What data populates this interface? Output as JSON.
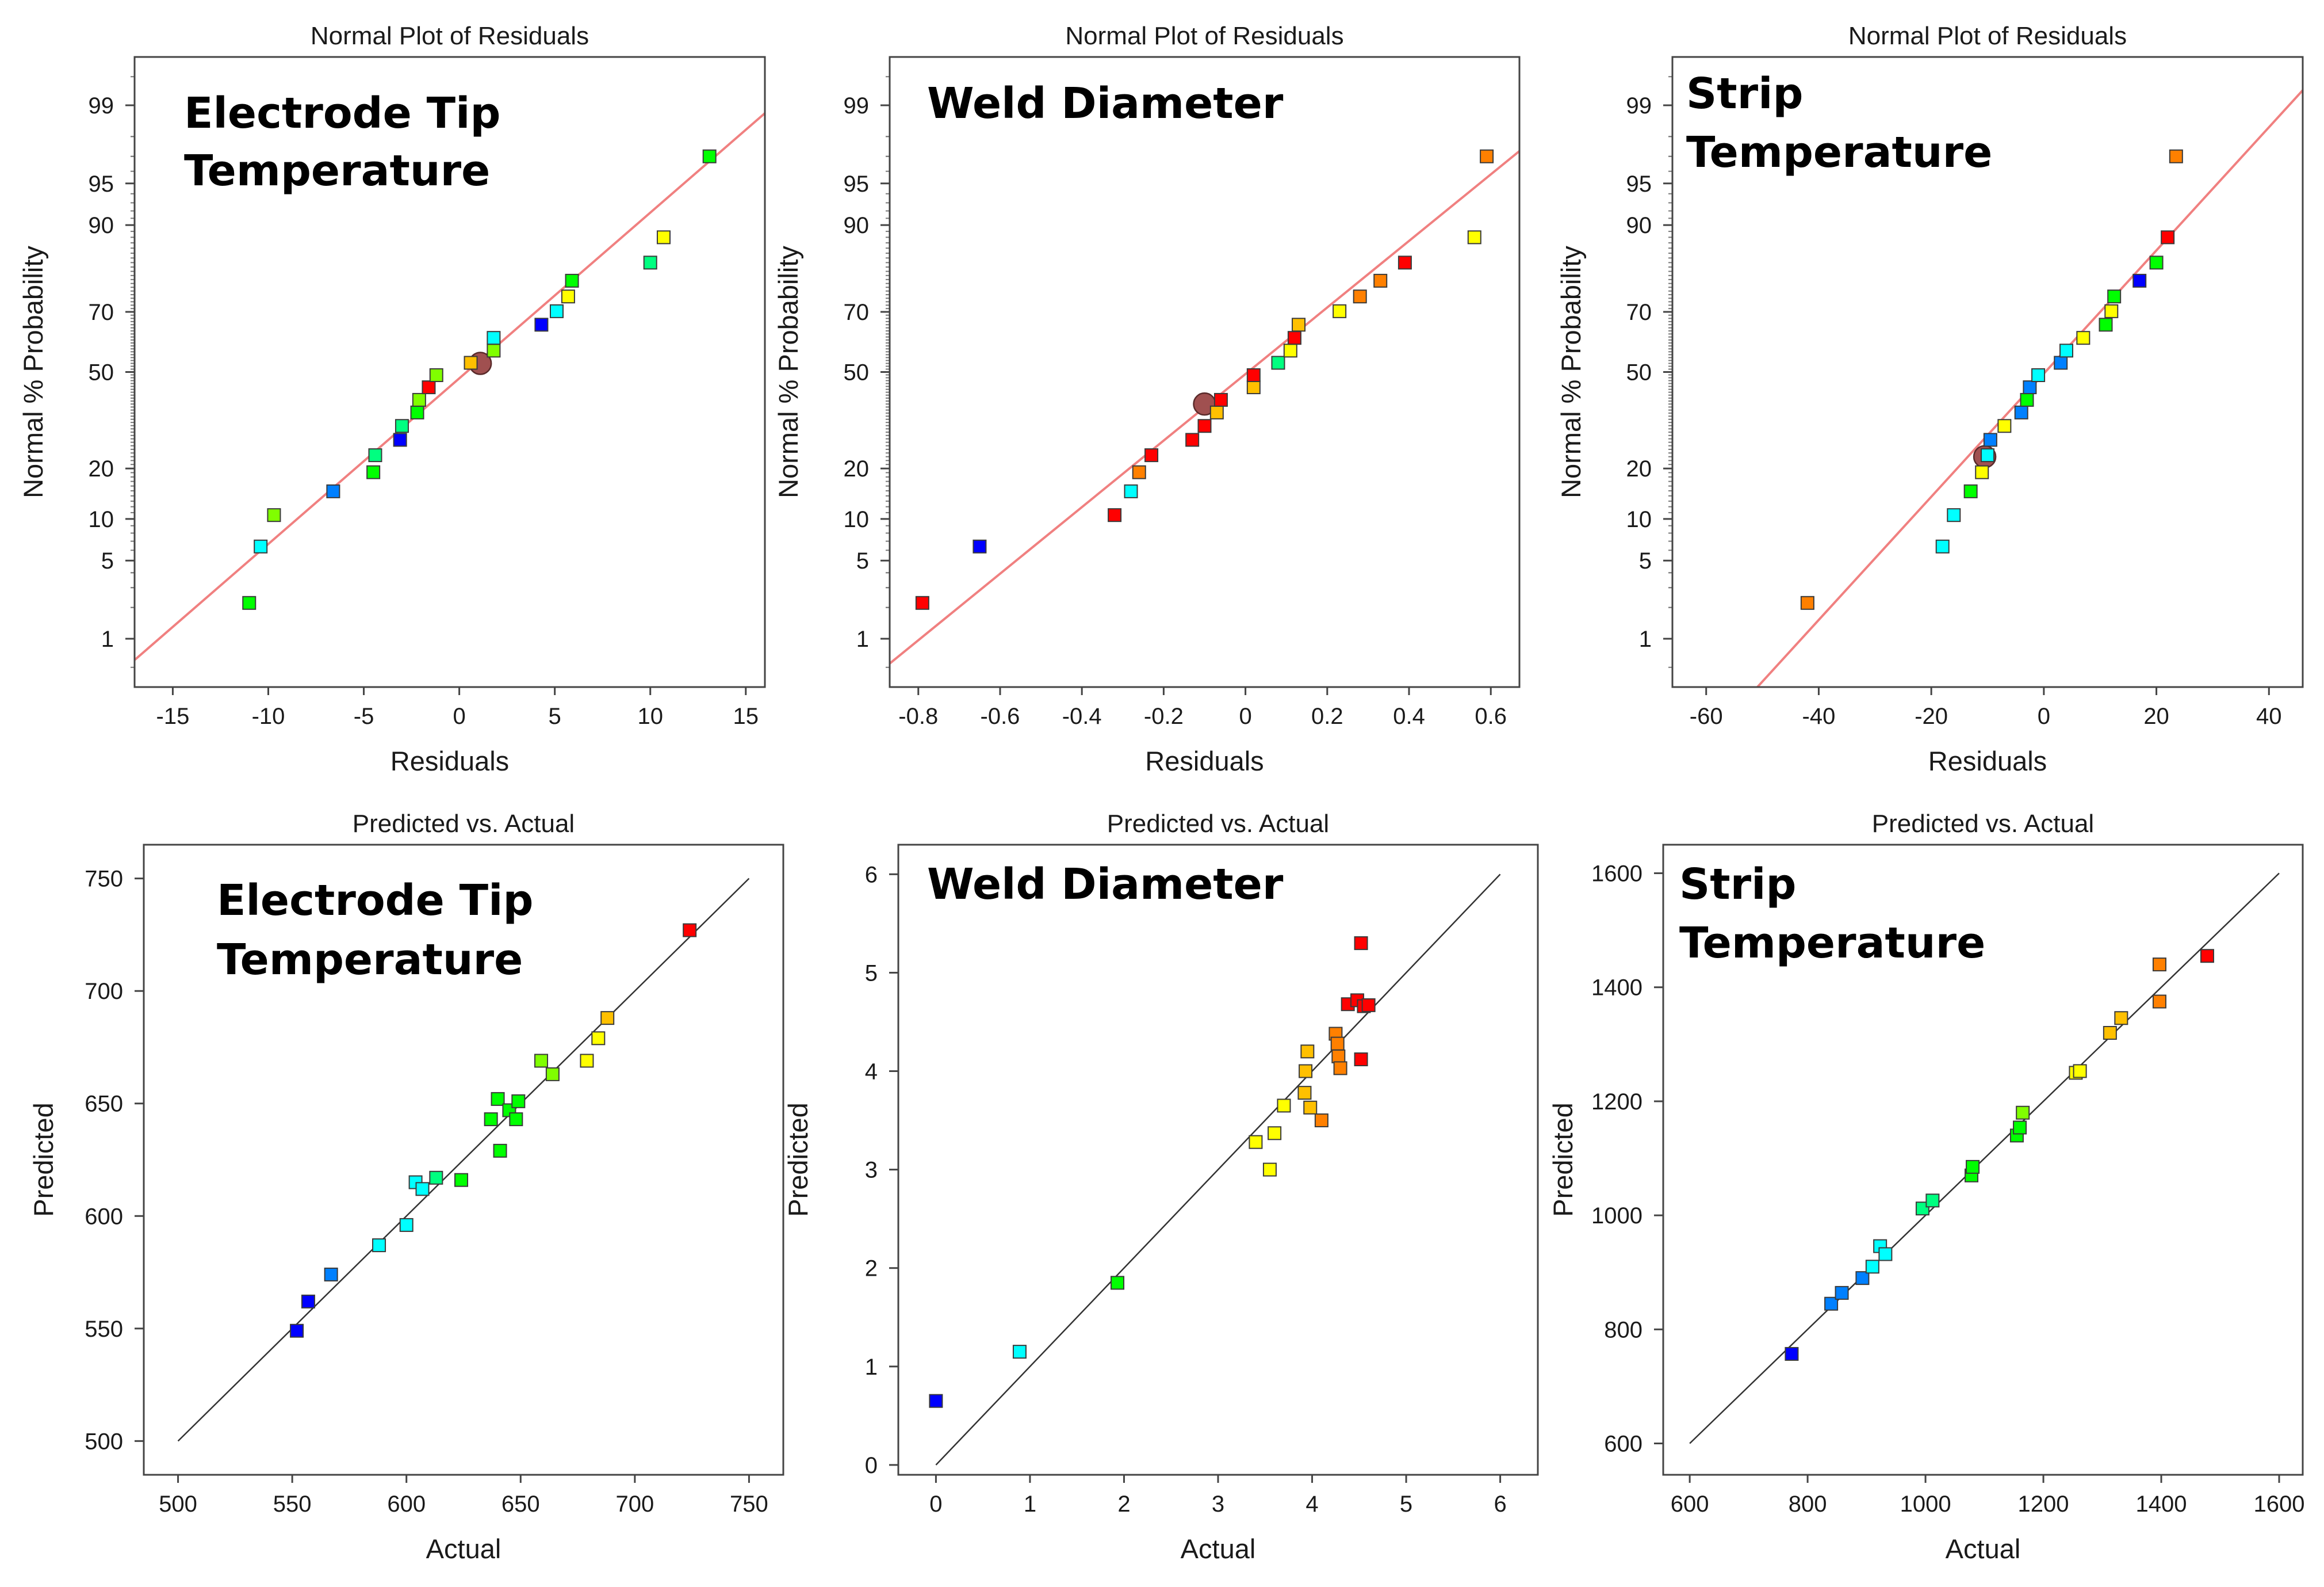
{
  "colors": {
    "fit_line_residuals": "#f08080",
    "diagonal_line": "#333333",
    "palette": [
      "#0000ff",
      "#0080ff",
      "#00ffff",
      "#00ff80",
      "#00ff00",
      "#80ff00",
      "#ffff00",
      "#ffc000",
      "#ff8000",
      "#ff0000"
    ],
    "highlight_circle": "#a05050"
  },
  "chart_data": [
    {
      "type": "scatter",
      "title": "Normal Plot of Residuals",
      "annotation": [
        "Electrode Tip",
        "Temperature"
      ],
      "xlabel": "Residuals",
      "ylabel": "Normal % Probability",
      "xlim": [
        -17,
        16
      ],
      "xticks": [
        -15,
        -10,
        -5,
        0,
        5,
        10,
        15
      ],
      "yscale": "normal-probability",
      "ylim": [
        0.3,
        99.7
      ],
      "yticks": [
        1,
        5,
        10,
        20,
        50,
        70,
        90,
        95,
        99
      ],
      "fit_line": {
        "x": [
          -17,
          16
        ],
        "y": [
          0.6,
          98.8
        ]
      },
      "highlight": {
        "x": 1.1,
        "y": 53
      },
      "points": [
        {
          "x": -11.0,
          "y": 2.2,
          "c": 4
        },
        {
          "x": -10.4,
          "y": 6.4,
          "c": 2
        },
        {
          "x": -9.7,
          "y": 10.6,
          "c": 5
        },
        {
          "x": -6.6,
          "y": 14.9,
          "c": 1
        },
        {
          "x": -4.5,
          "y": 19.1,
          "c": 4
        },
        {
          "x": -4.4,
          "y": 23.4,
          "c": 3
        },
        {
          "x": -3.1,
          "y": 27.7,
          "c": 0
        },
        {
          "x": -3.0,
          "y": 31.9,
          "c": 3
        },
        {
          "x": -2.2,
          "y": 36.2,
          "c": 4
        },
        {
          "x": -2.1,
          "y": 40.4,
          "c": 5
        },
        {
          "x": -1.6,
          "y": 44.7,
          "c": 9
        },
        {
          "x": -1.2,
          "y": 48.9,
          "c": 5
        },
        {
          "x": 0.6,
          "y": 53.2,
          "c": 7
        },
        {
          "x": 1.8,
          "y": 57.4,
          "c": 5
        },
        {
          "x": 1.8,
          "y": 61.7,
          "c": 2
        },
        {
          "x": 4.3,
          "y": 66.0,
          "c": 0
        },
        {
          "x": 5.1,
          "y": 70.2,
          "c": 2
        },
        {
          "x": 5.7,
          "y": 74.5,
          "c": 6
        },
        {
          "x": 5.9,
          "y": 78.7,
          "c": 4
        },
        {
          "x": 10.0,
          "y": 83.0,
          "c": 3
        },
        {
          "x": 10.7,
          "y": 88.0,
          "c": 6
        },
        {
          "x": 13.1,
          "y": 97.0,
          "c": 4
        }
      ]
    },
    {
      "type": "scatter",
      "title": "Normal Plot of Residuals",
      "annotation": [
        "Weld Diameter"
      ],
      "xlabel": "Residuals",
      "ylabel": "Normal % Probability",
      "xlim": [
        -0.87,
        0.67
      ],
      "xticks": [
        -0.8,
        -0.6,
        -0.4,
        -0.2,
        0,
        0.2,
        0.4,
        0.6
      ],
      "yscale": "normal-probability",
      "ylim": [
        0.3,
        99.7
      ],
      "yticks": [
        1,
        5,
        10,
        20,
        50,
        70,
        90,
        95,
        99
      ],
      "fit_line": {
        "x": [
          -0.87,
          0.67
        ],
        "y": [
          0.55,
          97.3
        ]
      },
      "highlight": {
        "x": -0.1,
        "y": 39
      },
      "points": [
        {
          "x": -0.79,
          "y": 2.2,
          "c": 9
        },
        {
          "x": -0.65,
          "y": 6.4,
          "c": 0
        },
        {
          "x": -0.32,
          "y": 10.6,
          "c": 9
        },
        {
          "x": -0.28,
          "y": 14.9,
          "c": 2
        },
        {
          "x": -0.26,
          "y": 19.1,
          "c": 8
        },
        {
          "x": -0.23,
          "y": 23.4,
          "c": 9
        },
        {
          "x": -0.13,
          "y": 27.7,
          "c": 9
        },
        {
          "x": -0.1,
          "y": 31.9,
          "c": 9
        },
        {
          "x": -0.07,
          "y": 36.2,
          "c": 7
        },
        {
          "x": -0.06,
          "y": 40.4,
          "c": 9
        },
        {
          "x": 0.02,
          "y": 44.7,
          "c": 7
        },
        {
          "x": 0.02,
          "y": 48.9,
          "c": 9
        },
        {
          "x": 0.08,
          "y": 53.2,
          "c": 3
        },
        {
          "x": 0.11,
          "y": 57.4,
          "c": 6
        },
        {
          "x": 0.12,
          "y": 61.7,
          "c": 9
        },
        {
          "x": 0.13,
          "y": 66.0,
          "c": 7
        },
        {
          "x": 0.23,
          "y": 70.2,
          "c": 6
        },
        {
          "x": 0.28,
          "y": 74.5,
          "c": 8
        },
        {
          "x": 0.33,
          "y": 78.7,
          "c": 8
        },
        {
          "x": 0.39,
          "y": 83.0,
          "c": 9
        },
        {
          "x": 0.56,
          "y": 88.0,
          "c": 6
        },
        {
          "x": 0.59,
          "y": 97.0,
          "c": 8
        }
      ]
    },
    {
      "type": "scatter",
      "title": "Normal Plot of Residuals",
      "annotation": [
        "Strip",
        "Temperature"
      ],
      "xlabel": "Residuals",
      "ylabel": "Normal % Probability",
      "xlim": [
        -66,
        46
      ],
      "xticks": [
        -60,
        -40,
        -20,
        0,
        20,
        40
      ],
      "yscale": "normal-probability",
      "ylim": [
        0.3,
        99.7
      ],
      "yticks": [
        1,
        5,
        10,
        20,
        50,
        70,
        90,
        95,
        99
      ],
      "fit_line": {
        "x": [
          -52,
          46
        ],
        "y": [
          0.25,
          99.3
        ]
      },
      "highlight": {
        "x": -10.5,
        "y": 23
      },
      "points": [
        {
          "x": -42.0,
          "y": 2.2,
          "c": 8
        },
        {
          "x": -18.0,
          "y": 6.4,
          "c": 2
        },
        {
          "x": -16.0,
          "y": 10.6,
          "c": 2
        },
        {
          "x": -13.0,
          "y": 14.9,
          "c": 4
        },
        {
          "x": -11.0,
          "y": 19.1,
          "c": 6
        },
        {
          "x": -10.0,
          "y": 23.4,
          "c": 2
        },
        {
          "x": -9.5,
          "y": 27.7,
          "c": 1
        },
        {
          "x": -7.0,
          "y": 31.9,
          "c": 6
        },
        {
          "x": -4.0,
          "y": 36.2,
          "c": 1
        },
        {
          "x": -3.0,
          "y": 40.4,
          "c": 4
        },
        {
          "x": -2.5,
          "y": 44.7,
          "c": 1
        },
        {
          "x": -1.0,
          "y": 48.9,
          "c": 2
        },
        {
          "x": 3.0,
          "y": 53.2,
          "c": 1
        },
        {
          "x": 4.0,
          "y": 57.4,
          "c": 2
        },
        {
          "x": 7.0,
          "y": 61.7,
          "c": 6
        },
        {
          "x": 11.0,
          "y": 66.0,
          "c": 4
        },
        {
          "x": 12.0,
          "y": 70.2,
          "c": 6
        },
        {
          "x": 12.5,
          "y": 74.5,
          "c": 4
        },
        {
          "x": 17.0,
          "y": 78.7,
          "c": 0
        },
        {
          "x": 20.0,
          "y": 83.0,
          "c": 4
        },
        {
          "x": 22.0,
          "y": 88.0,
          "c": 9
        },
        {
          "x": 23.5,
          "y": 97.0,
          "c": 8
        }
      ]
    },
    {
      "type": "scatter",
      "title": "Predicted vs. Actual",
      "annotation": [
        "Electrode Tip",
        "Temperature"
      ],
      "xlabel": "Actual",
      "ylabel": "Predicted",
      "xlim": [
        485,
        765
      ],
      "ylim": [
        485,
        765
      ],
      "xticks": [
        500,
        550,
        600,
        650,
        700,
        750
      ],
      "yticks": [
        500,
        550,
        600,
        650,
        700,
        750
      ],
      "diagonal": [
        500,
        750
      ],
      "points": [
        {
          "x": 552,
          "y": 549,
          "c": 0
        },
        {
          "x": 557,
          "y": 562,
          "c": 0
        },
        {
          "x": 567,
          "y": 574,
          "c": 1
        },
        {
          "x": 588,
          "y": 587,
          "c": 2
        },
        {
          "x": 600,
          "y": 596,
          "c": 2
        },
        {
          "x": 604,
          "y": 615,
          "c": 2
        },
        {
          "x": 607,
          "y": 612,
          "c": 2
        },
        {
          "x": 613,
          "y": 617,
          "c": 3
        },
        {
          "x": 624,
          "y": 616,
          "c": 4
        },
        {
          "x": 637,
          "y": 643,
          "c": 4
        },
        {
          "x": 640,
          "y": 652,
          "c": 4
        },
        {
          "x": 641,
          "y": 629,
          "c": 4
        },
        {
          "x": 645,
          "y": 647,
          "c": 4
        },
        {
          "x": 648,
          "y": 643,
          "c": 4
        },
        {
          "x": 649,
          "y": 651,
          "c": 4
        },
        {
          "x": 659,
          "y": 669,
          "c": 5
        },
        {
          "x": 664,
          "y": 663,
          "c": 5
        },
        {
          "x": 679,
          "y": 669,
          "c": 6
        },
        {
          "x": 684,
          "y": 679,
          "c": 6
        },
        {
          "x": 688,
          "y": 688,
          "c": 7
        },
        {
          "x": 724,
          "y": 727,
          "c": 9
        }
      ]
    },
    {
      "type": "scatter",
      "title": "Predicted vs. Actual",
      "annotation": [
        "Weld Diameter"
      ],
      "xlabel": "Actual",
      "ylabel": "Predicted",
      "xlim": [
        -0.4,
        6.4
      ],
      "ylim": [
        -0.1,
        6.3
      ],
      "xticks": [
        0,
        1,
        2,
        3,
        4,
        5,
        6
      ],
      "yticks": [
        0,
        1,
        2,
        3,
        4,
        5,
        6
      ],
      "diagonal": [
        0,
        6
      ],
      "points": [
        {
          "x": 0.0,
          "y": 0.65,
          "c": 0
        },
        {
          "x": 0.89,
          "y": 1.15,
          "c": 2
        },
        {
          "x": 1.93,
          "y": 1.85,
          "c": 4
        },
        {
          "x": 3.4,
          "y": 3.28,
          "c": 6
        },
        {
          "x": 3.55,
          "y": 3.0,
          "c": 6
        },
        {
          "x": 3.6,
          "y": 3.37,
          "c": 6
        },
        {
          "x": 3.7,
          "y": 3.65,
          "c": 6
        },
        {
          "x": 3.92,
          "y": 3.78,
          "c": 7
        },
        {
          "x": 3.93,
          "y": 4.0,
          "c": 7
        },
        {
          "x": 3.95,
          "y": 4.2,
          "c": 7
        },
        {
          "x": 3.98,
          "y": 3.63,
          "c": 7
        },
        {
          "x": 4.1,
          "y": 3.5,
          "c": 8
        },
        {
          "x": 4.25,
          "y": 4.38,
          "c": 8
        },
        {
          "x": 4.27,
          "y": 4.28,
          "c": 8
        },
        {
          "x": 4.28,
          "y": 4.15,
          "c": 8
        },
        {
          "x": 4.3,
          "y": 4.03,
          "c": 8
        },
        {
          "x": 4.38,
          "y": 4.68,
          "c": 9
        },
        {
          "x": 4.48,
          "y": 4.72,
          "c": 9
        },
        {
          "x": 4.52,
          "y": 4.12,
          "c": 9
        },
        {
          "x": 4.52,
          "y": 5.3,
          "c": 9
        },
        {
          "x": 4.55,
          "y": 4.66,
          "c": 9
        },
        {
          "x": 4.6,
          "y": 4.67,
          "c": 9
        }
      ]
    },
    {
      "type": "scatter",
      "title": "Predicted vs. Actual",
      "annotation": [
        "Strip",
        "Temperature"
      ],
      "xlabel": "Actual",
      "ylabel": "Predicted",
      "xlim": [
        555,
        1640
      ],
      "ylim": [
        545,
        1650
      ],
      "xticks": [
        600,
        800,
        1000,
        1200,
        1400,
        1600
      ],
      "yticks": [
        600,
        800,
        1000,
        1200,
        1400,
        1600
      ],
      "diagonal": [
        600,
        1600
      ],
      "points": [
        {
          "x": 773,
          "y": 757,
          "c": 0
        },
        {
          "x": 840,
          "y": 845,
          "c": 1
        },
        {
          "x": 858,
          "y": 864,
          "c": 1
        },
        {
          "x": 893,
          "y": 890,
          "c": 1
        },
        {
          "x": 910,
          "y": 910,
          "c": 2
        },
        {
          "x": 923,
          "y": 946,
          "c": 2
        },
        {
          "x": 932,
          "y": 932,
          "c": 2
        },
        {
          "x": 995,
          "y": 1012,
          "c": 3
        },
        {
          "x": 1012,
          "y": 1026,
          "c": 3
        },
        {
          "x": 1078,
          "y": 1070,
          "c": 4
        },
        {
          "x": 1080,
          "y": 1085,
          "c": 4
        },
        {
          "x": 1155,
          "y": 1140,
          "c": 4
        },
        {
          "x": 1160,
          "y": 1154,
          "c": 4
        },
        {
          "x": 1165,
          "y": 1180,
          "c": 5
        },
        {
          "x": 1255,
          "y": 1250,
          "c": 6
        },
        {
          "x": 1262,
          "y": 1253,
          "c": 6
        },
        {
          "x": 1313,
          "y": 1320,
          "c": 7
        },
        {
          "x": 1332,
          "y": 1346,
          "c": 7
        },
        {
          "x": 1397,
          "y": 1375,
          "c": 8
        },
        {
          "x": 1397,
          "y": 1440,
          "c": 8
        },
        {
          "x": 1478,
          "y": 1455,
          "c": 9
        }
      ]
    }
  ]
}
